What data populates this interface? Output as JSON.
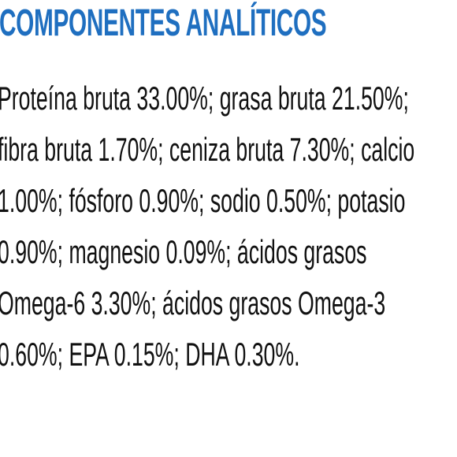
{
  "heading": "COMPONENTES ANALÍTICOS",
  "lines": [
    "Proteína bruta 33.00%; grasa bruta 21.50%;",
    "fibra bruta 1.70%; ceniza bruta 7.30%; calcio",
    "1.00%; fósforo 0.90%; sodio 0.50%; potasio",
    "0.90%; magnesio 0.09%; ácidos grasos",
    "Omega-6 3.30%; ácidos grasos Omega-3",
    "0.60%; EPA 0.15%; DHA 0.30%."
  ]
}
